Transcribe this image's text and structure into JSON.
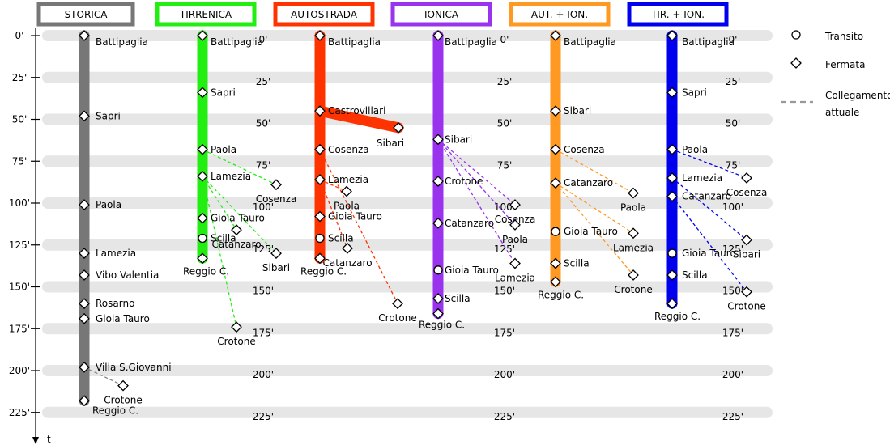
{
  "routes": [
    {
      "id": "storica",
      "title": "STORICA",
      "color": "#777777",
      "stations": [
        {
          "name": "Battipaglia",
          "t": 0,
          "type": "stop"
        },
        {
          "name": "Sapri",
          "t": 48,
          "type": "stop"
        },
        {
          "name": "Paola",
          "t": 101,
          "type": "stop"
        },
        {
          "name": "Lamezia",
          "t": 130,
          "type": "stop"
        },
        {
          "name": "Vibo Valentia",
          "t": 143,
          "type": "stop"
        },
        {
          "name": "Rosarno",
          "t": 160,
          "type": "stop"
        },
        {
          "name": "Gioia Tauro",
          "t": 169,
          "type": "stop"
        },
        {
          "name": "Villa S.Giovanni",
          "t": 198,
          "type": "stop"
        },
        {
          "name": "Reggio C.",
          "t": 218,
          "type": "stop"
        }
      ],
      "branches": [],
      "connections": [
        {
          "from_t": 198,
          "name": "Crotone",
          "t": 209
        }
      ]
    },
    {
      "id": "tirrenica",
      "title": "TIRRENICA",
      "color": "#22ee11",
      "stations": [
        {
          "name": "Battipaglia",
          "t": 0,
          "type": "stop"
        },
        {
          "name": "Sapri",
          "t": 34,
          "type": "stop"
        },
        {
          "name": "Paola",
          "t": 68,
          "type": "stop"
        },
        {
          "name": "Lamezia",
          "t": 84,
          "type": "stop"
        },
        {
          "name": "Gioia Tauro",
          "t": 109,
          "type": "stop"
        },
        {
          "name": "Scilla",
          "t": 121,
          "type": "transit"
        },
        {
          "name": "Reggio C.",
          "t": 133,
          "type": "stop"
        }
      ],
      "branches": [],
      "connections": [
        {
          "from_t": 68,
          "name": "Cosenza",
          "t": 89
        },
        {
          "from_t": 84,
          "name": "Catanzaro",
          "t": 116
        },
        {
          "from_t": 84,
          "name": "Sibari",
          "t": 130
        },
        {
          "from_t": 84,
          "name": "Crotone",
          "t": 174
        }
      ]
    },
    {
      "id": "autostrada",
      "title": "AUTOSTRADA",
      "color": "#ff3300",
      "stations": [
        {
          "name": "Battipaglia",
          "t": 0,
          "type": "stop"
        },
        {
          "name": "Castrovillari",
          "t": 45,
          "type": "stop"
        },
        {
          "name": "Cosenza",
          "t": 68,
          "type": "stop"
        },
        {
          "name": "Lamezia",
          "t": 86,
          "type": "stop"
        },
        {
          "name": "Gioia Tauro",
          "t": 108,
          "type": "stop"
        },
        {
          "name": "Scilla",
          "t": 121,
          "type": "transit"
        },
        {
          "name": "Reggio C.",
          "t": 133,
          "type": "stop"
        }
      ],
      "branches": [
        {
          "from_t": 45,
          "name": "Sibari",
          "t": 55
        }
      ],
      "connections": [
        {
          "from_t": 86,
          "name": "Paola",
          "t": 93
        },
        {
          "from_t": 86,
          "name": "Catanzaro",
          "t": 127
        },
        {
          "from_t": 68,
          "name": "Crotone",
          "t": 160
        }
      ]
    },
    {
      "id": "ionica",
      "title": "IONICA",
      "color": "#9933ee",
      "stations": [
        {
          "name": "Battipaglia",
          "t": 0,
          "type": "stop"
        },
        {
          "name": "Sibari",
          "t": 62,
          "type": "stop"
        },
        {
          "name": "Crotone",
          "t": 87,
          "type": "stop"
        },
        {
          "name": "Catanzaro",
          "t": 112,
          "type": "stop"
        },
        {
          "name": "Gioia Tauro",
          "t": 140,
          "type": "transit"
        },
        {
          "name": "Scilla",
          "t": 157,
          "type": "stop"
        },
        {
          "name": "Reggio C.",
          "t": 166,
          "type": "stop"
        }
      ],
      "branches": [],
      "connections": [
        {
          "from_t": 62,
          "name": "Cosenza",
          "t": 101
        },
        {
          "from_t": 62,
          "name": "Paola",
          "t": 113
        },
        {
          "from_t": 62,
          "name": "Lamezia",
          "t": 136
        }
      ]
    },
    {
      "id": "aut_ion",
      "title": "AUT. + ION.",
      "color": "#ff9922",
      "stations": [
        {
          "name": "Battipaglia",
          "t": 0,
          "type": "stop"
        },
        {
          "name": "Sibari",
          "t": 45,
          "type": "stop"
        },
        {
          "name": "Cosenza",
          "t": 68,
          "type": "stop"
        },
        {
          "name": "Catanzaro",
          "t": 88,
          "type": "stop"
        },
        {
          "name": "Gioia Tauro",
          "t": 117,
          "type": "transit"
        },
        {
          "name": "Scilla",
          "t": 136,
          "type": "stop"
        },
        {
          "name": "Reggio C.",
          "t": 147,
          "type": "stop"
        }
      ],
      "branches": [],
      "connections": [
        {
          "from_t": 68,
          "name": "Paola",
          "t": 94
        },
        {
          "from_t": 88,
          "name": "Lamezia",
          "t": 118
        },
        {
          "from_t": 88,
          "name": "Crotone",
          "t": 143
        }
      ]
    },
    {
      "id": "tir_ion",
      "title": "TIR. + ION.",
      "color": "#0000ee",
      "stations": [
        {
          "name": "Battipaglia",
          "t": 0,
          "type": "stop"
        },
        {
          "name": "Sapri",
          "t": 34,
          "type": "stop"
        },
        {
          "name": "Paola",
          "t": 68,
          "type": "stop"
        },
        {
          "name": "Lamezia",
          "t": 85,
          "type": "stop"
        },
        {
          "name": "Catanzaro",
          "t": 96,
          "type": "stop"
        },
        {
          "name": "Gioia Tauro",
          "t": 130,
          "type": "transit"
        },
        {
          "name": "Scilla",
          "t": 143,
          "type": "stop"
        },
        {
          "name": "Reggio C.",
          "t": 160,
          "type": "stop"
        }
      ],
      "branches": [],
      "connections": [
        {
          "from_t": 68,
          "name": "Cosenza",
          "t": 85
        },
        {
          "from_t": 85,
          "name": "Sibari",
          "t": 122
        },
        {
          "from_t": 96,
          "name": "Crotone",
          "t": 153
        }
      ]
    }
  ],
  "time_ticks": [
    0,
    25,
    50,
    75,
    100,
    125,
    150,
    175,
    200,
    225
  ],
  "time_unit": "'",
  "axis_label": "t",
  "legend": {
    "transit": "Transito",
    "stop": "Fermata",
    "link": "Collegamento attuale"
  }
}
